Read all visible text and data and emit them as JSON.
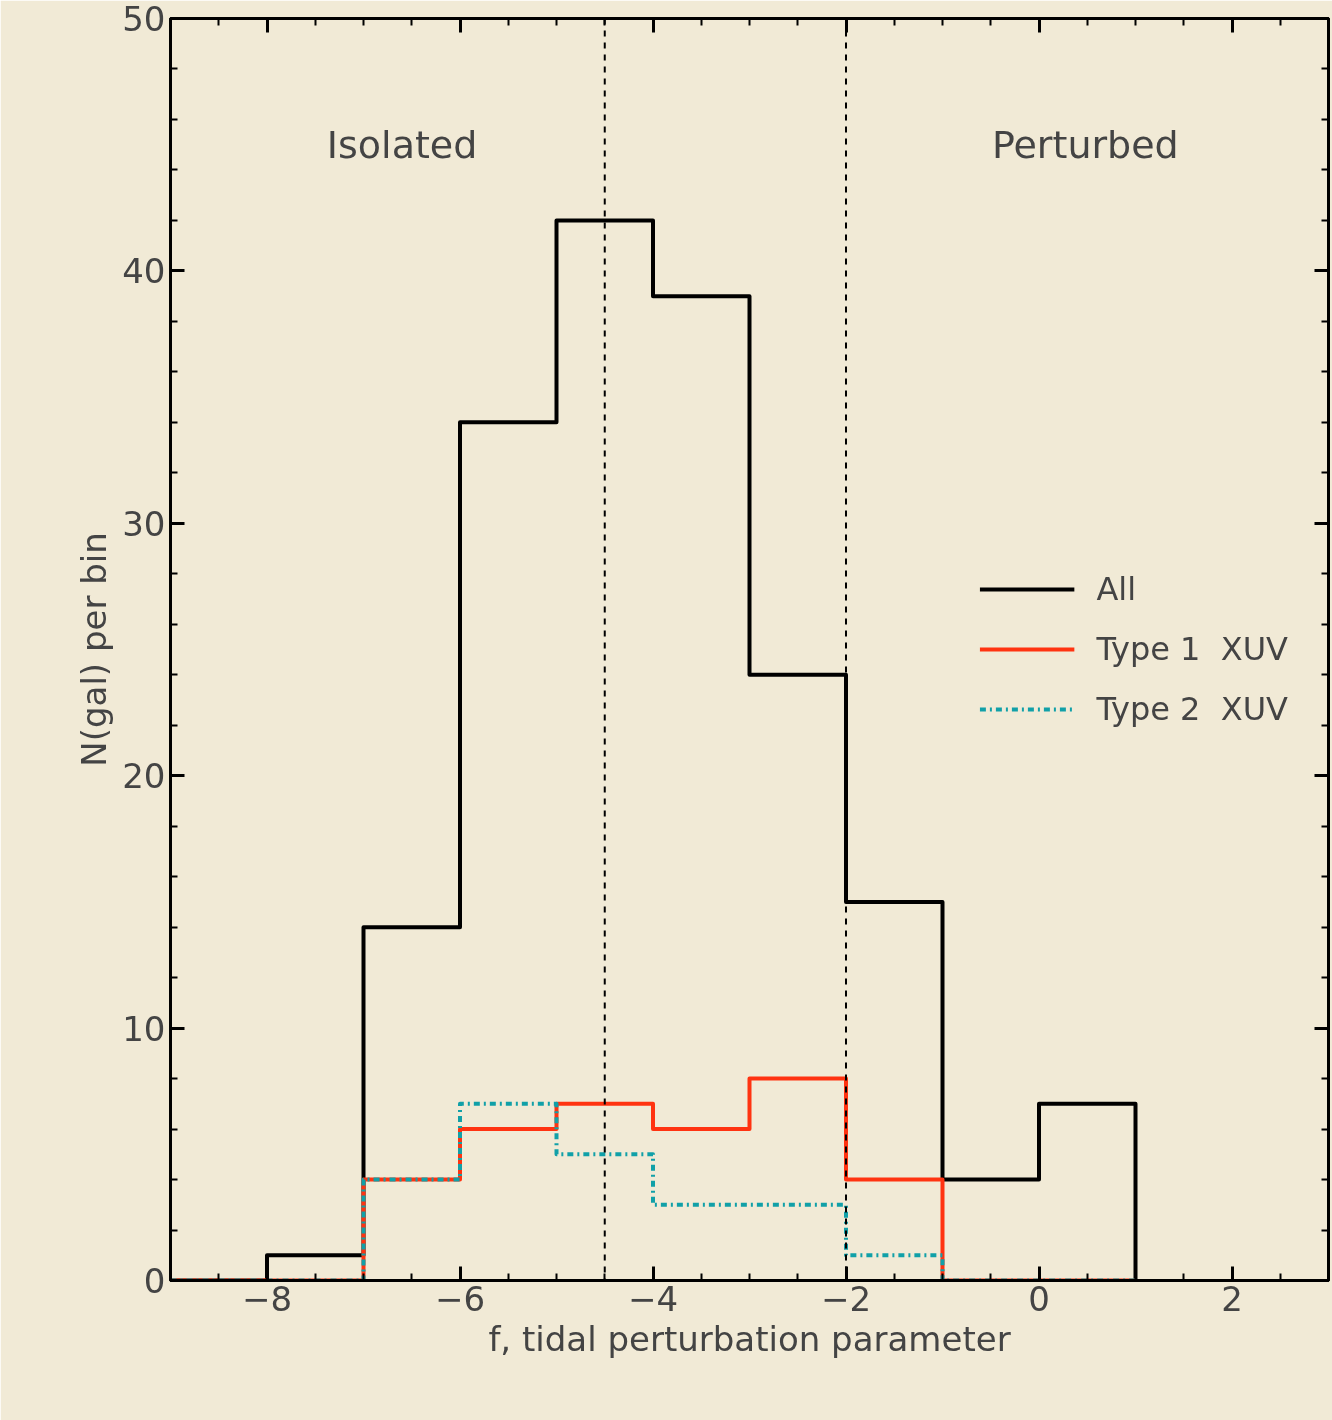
{
  "chart_data": {
    "type": "histogram",
    "xlabel": "f, tidal perturbation parameter",
    "ylabel": "N(gal) per bin",
    "bins": [
      -9,
      -8,
      -7,
      -6,
      -5,
      -4,
      -3,
      -2,
      -1,
      0,
      1
    ],
    "series": [
      {
        "name": "All",
        "color": "#000000",
        "line_style": "solid",
        "values": [
          0,
          1,
          14,
          34,
          42,
          39,
          24,
          15,
          4,
          7
        ]
      },
      {
        "name": "Type 1  XUV",
        "color": "#ff3311",
        "line_style": "solid",
        "values": [
          0,
          0,
          4,
          6,
          7,
          6,
          8,
          4,
          0,
          0
        ]
      },
      {
        "name": "Type 2  XUV",
        "color": "#11a0a8",
        "line_style": "dashdot",
        "values": [
          0,
          0,
          4,
          7,
          5,
          3,
          3,
          1,
          0,
          0
        ]
      }
    ],
    "ref_lines": [
      {
        "axis": "x",
        "value": -4.5,
        "line_style": "dashed",
        "color": "#000000"
      },
      {
        "axis": "x",
        "value": -2,
        "line_style": "dashed",
        "color": "#000000"
      }
    ],
    "annotations": [
      "Isolated",
      "Perturbed"
    ],
    "xlim": [
      -9,
      3
    ],
    "ylim": [
      0,
      50
    ],
    "xticks": [
      {
        "value": -8,
        "label": "−8"
      },
      {
        "value": -6,
        "label": "−6"
      },
      {
        "value": -4,
        "label": "−4"
      },
      {
        "value": -2,
        "label": "−2"
      },
      {
        "value": 0,
        "label": "0"
      },
      {
        "value": 2,
        "label": "2"
      }
    ],
    "yticks": [
      0,
      10,
      20,
      30,
      40,
      50
    ],
    "grid": false,
    "legend": "right"
  }
}
